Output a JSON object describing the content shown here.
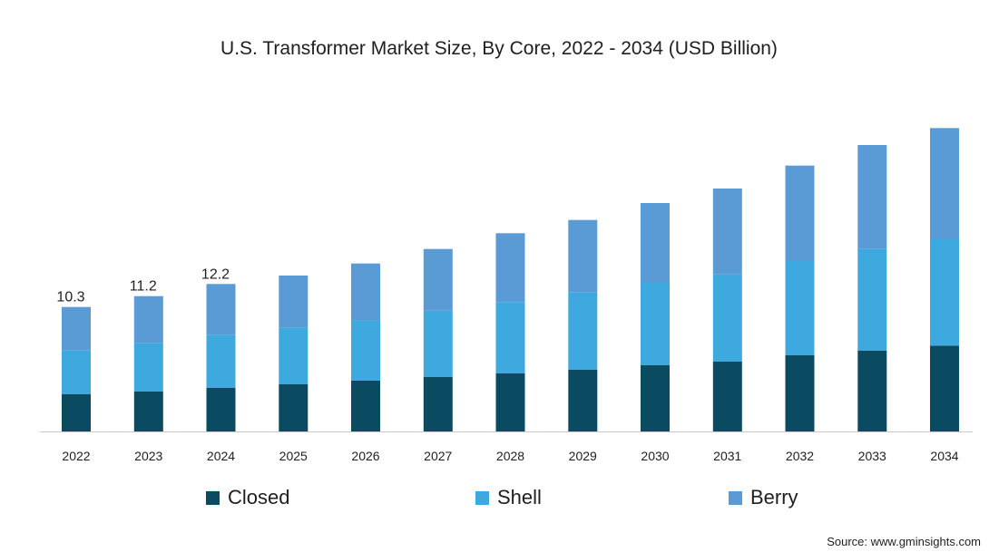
{
  "chart_data": {
    "type": "bar",
    "stacked": true,
    "title": "U.S. Transformer Market Size, By Core, 2022 - 2034 (USD Billion)",
    "categories": [
      "2022",
      "2023",
      "2024",
      "2025",
      "2026",
      "2027",
      "2028",
      "2029",
      "2030",
      "2031",
      "2032",
      "2033",
      "2034"
    ],
    "series": [
      {
        "name": "Closed",
        "color": "#0b4b61",
        "values": [
          3.1,
          3.3,
          3.6,
          3.9,
          4.2,
          4.5,
          4.8,
          5.1,
          5.5,
          5.8,
          6.3,
          6.7,
          7.1
        ]
      },
      {
        "name": "Shell",
        "color": "#3ea9de",
        "values": [
          3.6,
          4.0,
          4.4,
          4.7,
          5.0,
          5.5,
          5.9,
          6.4,
          6.8,
          7.2,
          7.8,
          8.4,
          8.8
        ]
      },
      {
        "name": "Berry",
        "color": "#5b9bd5",
        "values": [
          3.6,
          3.9,
          4.2,
          4.3,
          4.7,
          5.1,
          5.7,
          6.0,
          6.6,
          7.1,
          7.9,
          8.6,
          9.2
        ]
      }
    ],
    "data_labels": [
      {
        "category": "2022",
        "text": "10.3"
      },
      {
        "category": "2023",
        "text": "11.2"
      },
      {
        "category": "2024",
        "text": "12.2"
      }
    ],
    "xlabel": "",
    "ylabel": "",
    "ylim": [
      0,
      27
    ],
    "grid": false,
    "legend_position": "bottom",
    "source": "Source: www.gminsights.com"
  }
}
